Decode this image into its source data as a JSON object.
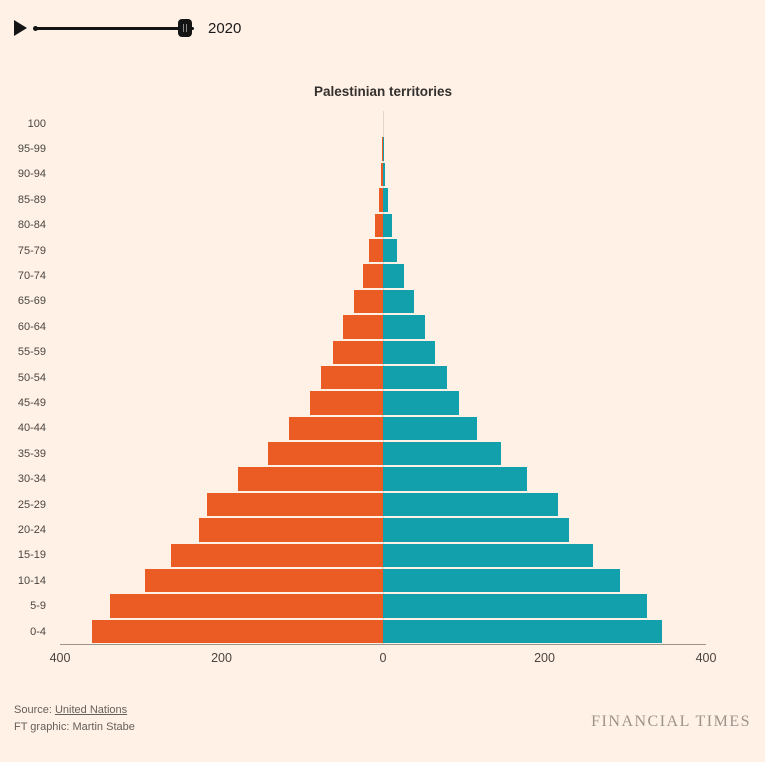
{
  "controls": {
    "year_label": "2020"
  },
  "chart_data": {
    "type": "bar",
    "subtype": "population-pyramid",
    "title": "Palestinian territories",
    "age_groups": [
      "100",
      "95-99",
      "90-94",
      "85-89",
      "80-84",
      "75-79",
      "70-74",
      "65-69",
      "60-64",
      "55-59",
      "50-54",
      "45-49",
      "40-44",
      "35-39",
      "30-34",
      "25-29",
      "20-24",
      "15-19",
      "10-14",
      "5-9",
      "0-4"
    ],
    "series": [
      {
        "name": "left",
        "color": "#EB5B24",
        "values": [
          0,
          1,
          2,
          5,
          10,
          17,
          25,
          36,
          50,
          62,
          77,
          91,
          116,
          143,
          180,
          218,
          228,
          262,
          295,
          338,
          360
        ]
      },
      {
        "name": "right",
        "color": "#12A0AC",
        "values": [
          0,
          1,
          3,
          6,
          11,
          17,
          26,
          38,
          52,
          64,
          79,
          94,
          116,
          146,
          178,
          217,
          230,
          260,
          293,
          327,
          345
        ]
      }
    ],
    "x_max": 400,
    "x_ticks": [
      "400",
      "200",
      "0",
      "200",
      "400"
    ],
    "tick_positions_pct": [
      0,
      25,
      50,
      75,
      100
    ],
    "grid": "center-line-only",
    "legend": "none"
  },
  "footer": {
    "source_prefix": "Source: ",
    "source_link": "United Nations",
    "credit": "FT graphic: Martin Stabe",
    "brand": "FINANCIAL TIMES"
  }
}
